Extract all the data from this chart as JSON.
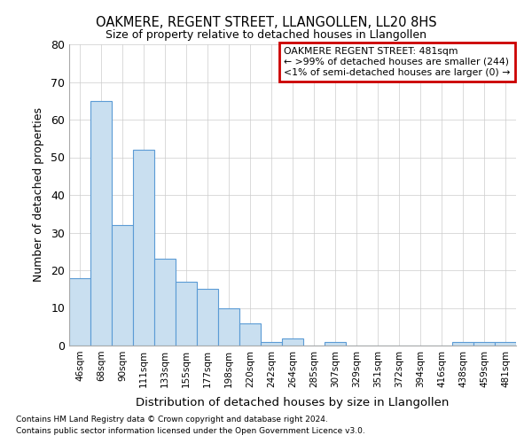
{
  "title": "OAKMERE, REGENT STREET, LLANGOLLEN, LL20 8HS",
  "subtitle": "Size of property relative to detached houses in Llangollen",
  "xlabel": "Distribution of detached houses by size in Llangollen",
  "ylabel": "Number of detached properties",
  "categories": [
    "46sqm",
    "68sqm",
    "90sqm",
    "111sqm",
    "133sqm",
    "155sqm",
    "177sqm",
    "198sqm",
    "220sqm",
    "242sqm",
    "264sqm",
    "285sqm",
    "307sqm",
    "329sqm",
    "351sqm",
    "372sqm",
    "394sqm",
    "416sqm",
    "438sqm",
    "459sqm",
    "481sqm"
  ],
  "values": [
    18,
    65,
    32,
    52,
    23,
    17,
    15,
    10,
    6,
    1,
    2,
    0,
    1,
    0,
    0,
    0,
    0,
    0,
    1,
    1,
    1
  ],
  "bar_color": "#c9dff0",
  "bar_edge_color": "#5b9bd5",
  "annotation_line1": "OAKMERE REGENT STREET: 481sqm",
  "annotation_line2": "← >99% of detached houses are smaller (244)",
  "annotation_line3": "<1% of semi-detached houses are larger (0) →",
  "annotation_box_edge_color": "#cc0000",
  "annotation_box_face_color": "#ffffff",
  "ylim": [
    0,
    80
  ],
  "yticks": [
    0,
    10,
    20,
    30,
    40,
    50,
    60,
    70,
    80
  ],
  "footer_line1": "Contains HM Land Registry data © Crown copyright and database right 2024.",
  "footer_line2": "Contains public sector information licensed under the Open Government Licence v3.0.",
  "background_color": "#ffffff",
  "grid_color": "#cccccc"
}
